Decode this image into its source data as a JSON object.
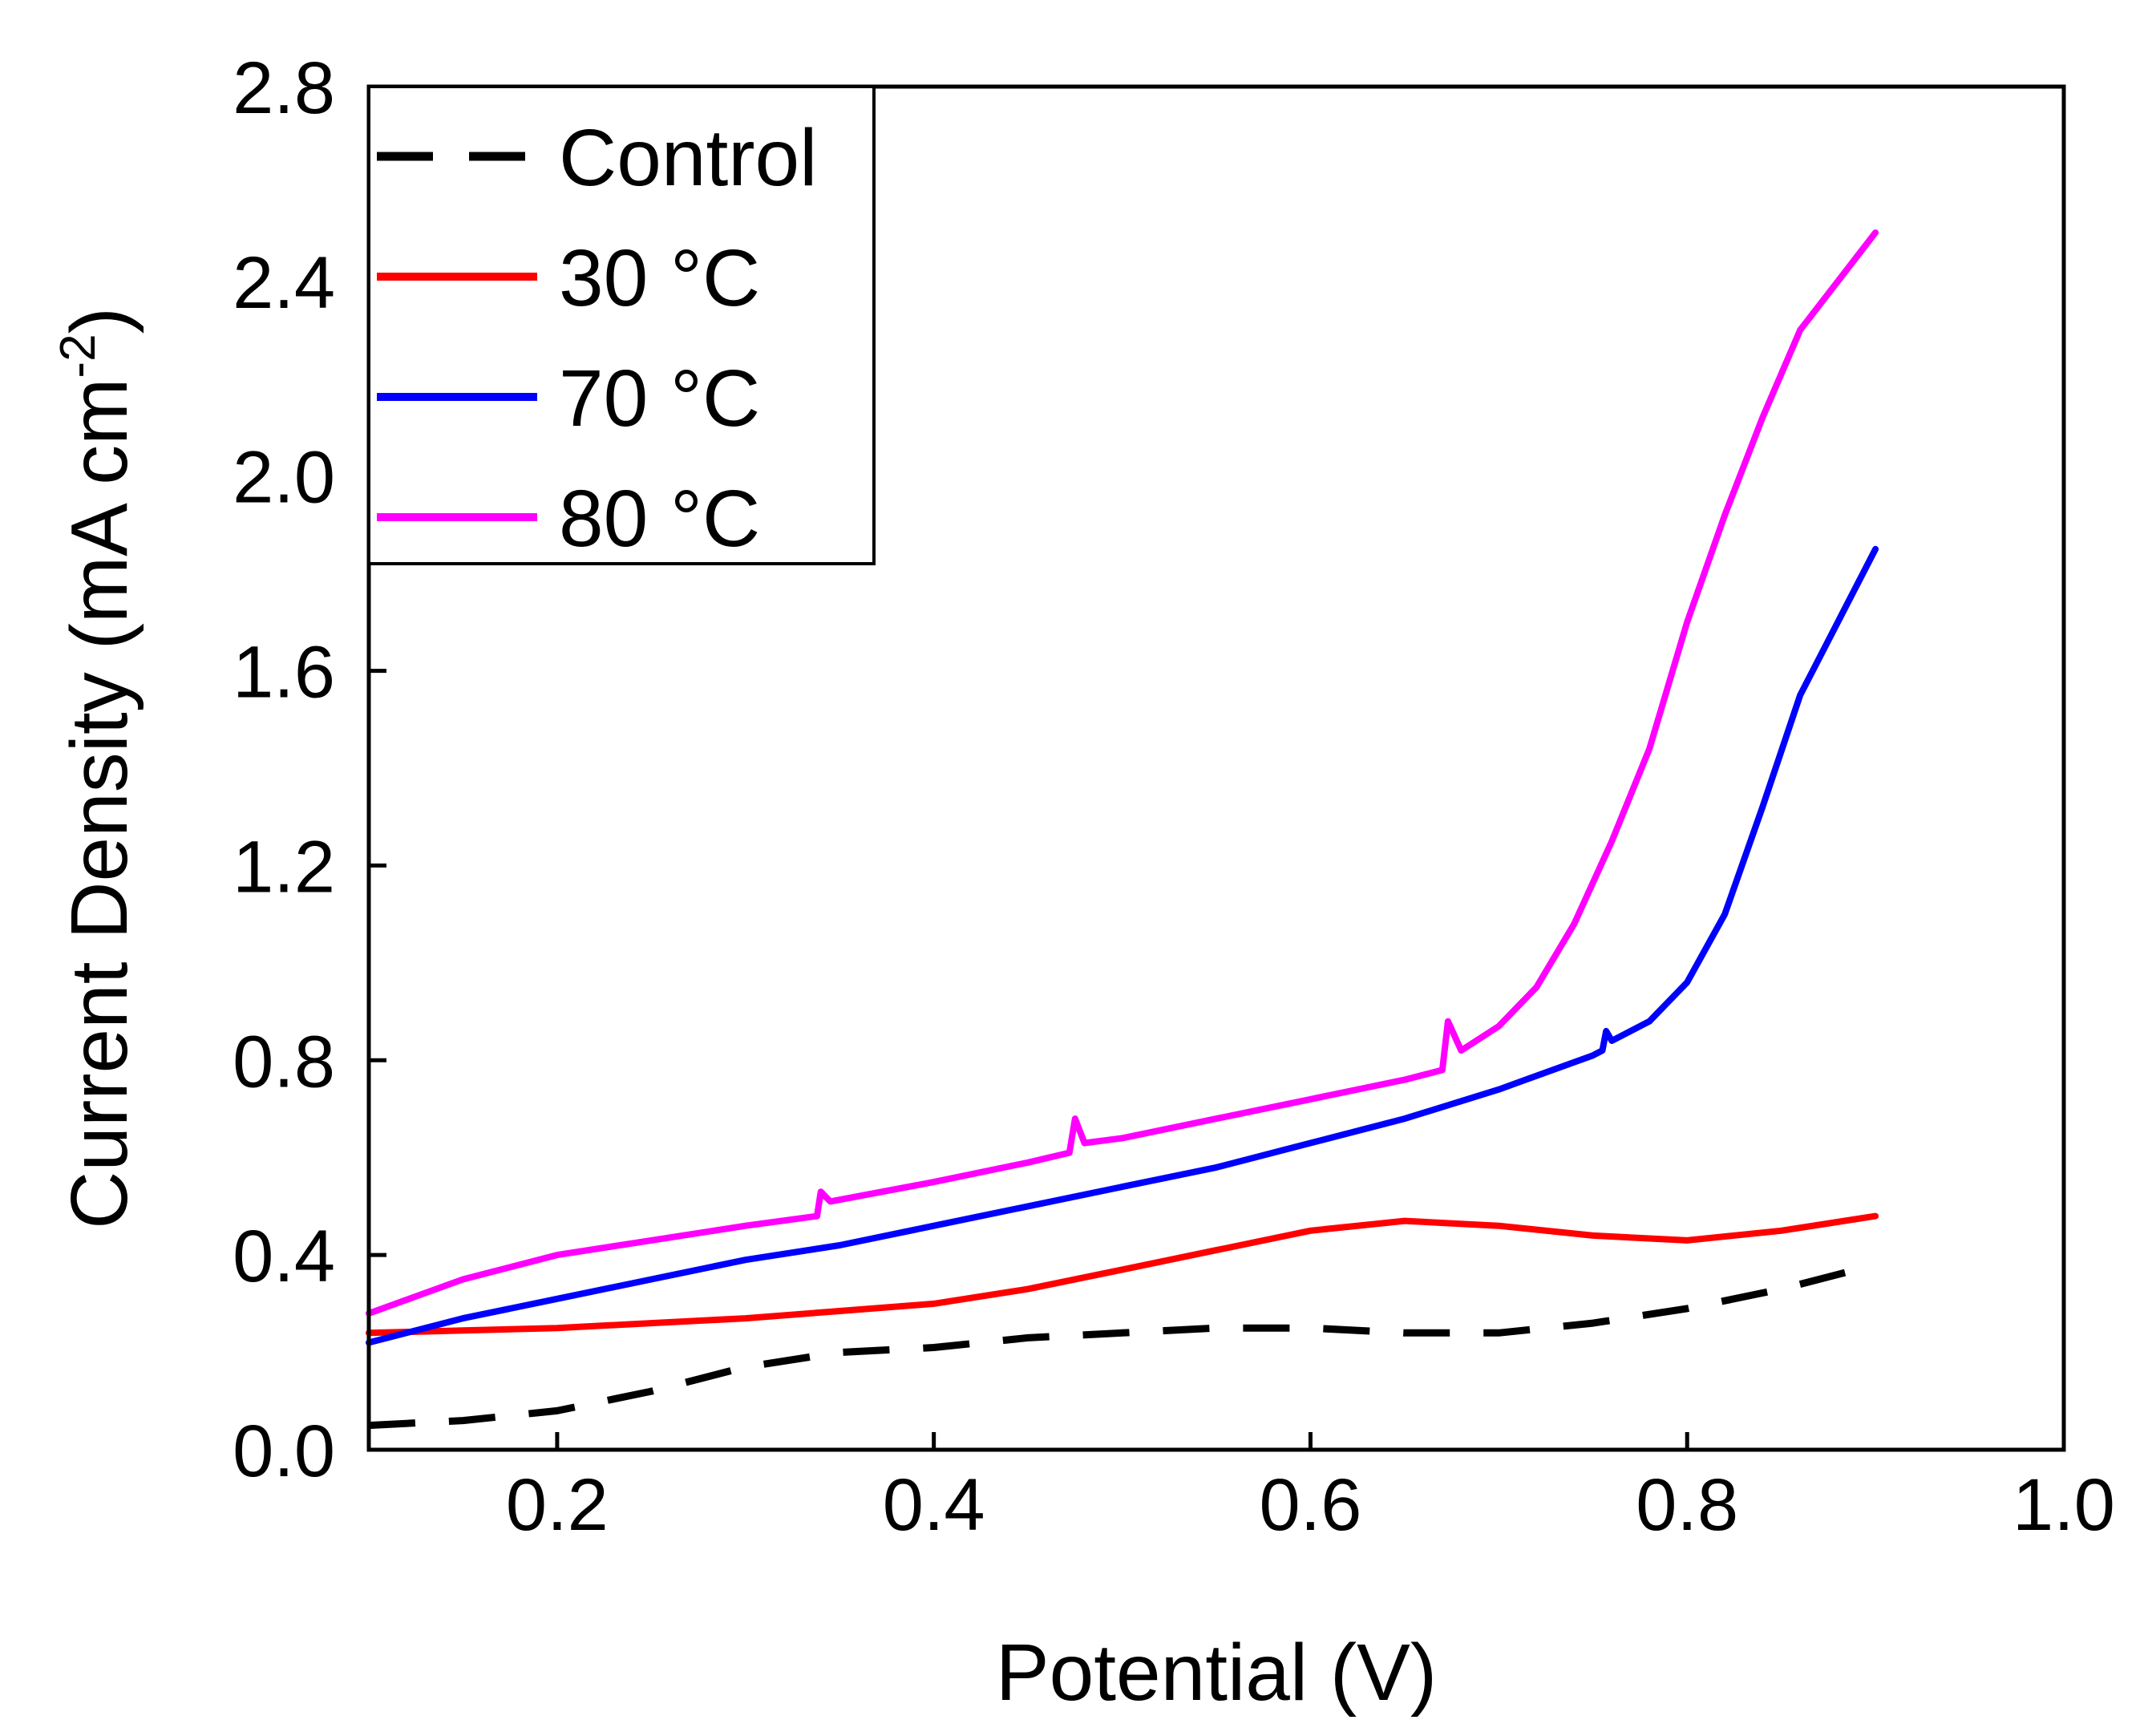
{
  "chart_data": {
    "type": "line",
    "title": "",
    "xlabel": "Potential (V)",
    "ylabel_main": "Current Density (mA cm",
    "ylabel_sup": "-2",
    "ylabel_close": ")",
    "xlim": [
      0.1,
      1.0
    ],
    "ylim": [
      0.0,
      2.8
    ],
    "xticks": [
      0.2,
      0.4,
      0.6,
      0.8,
      1.0
    ],
    "xtick_labels": [
      "0.2",
      "0.4",
      "0.6",
      "0.8",
      "1.0"
    ],
    "yticks": [
      0.0,
      0.4,
      0.8,
      1.2,
      1.6,
      2.0,
      2.4,
      2.8
    ],
    "ytick_labels": [
      "0.0",
      "0.4",
      "0.8",
      "1.2",
      "1.6",
      "2.0",
      "2.4",
      "2.8"
    ],
    "grid": false,
    "legend_position": "top-left",
    "series": [
      {
        "name": "Control",
        "color": "#000000",
        "style": "dashed",
        "x": [
          0.1,
          0.15,
          0.2,
          0.25,
          0.3,
          0.35,
          0.4,
          0.45,
          0.5,
          0.55,
          0.6,
          0.65,
          0.7,
          0.75,
          0.8,
          0.85,
          0.9
        ],
        "y": [
          0.05,
          0.06,
          0.08,
          0.12,
          0.17,
          0.2,
          0.21,
          0.23,
          0.24,
          0.25,
          0.25,
          0.24,
          0.24,
          0.26,
          0.29,
          0.33,
          0.38
        ]
      },
      {
        "name": "30 °C",
        "color": "#ff0000",
        "style": "solid",
        "x": [
          0.1,
          0.15,
          0.2,
          0.25,
          0.3,
          0.35,
          0.4,
          0.45,
          0.5,
          0.55,
          0.6,
          0.65,
          0.7,
          0.75,
          0.8,
          0.85,
          0.9
        ],
        "y": [
          0.24,
          0.245,
          0.25,
          0.26,
          0.27,
          0.285,
          0.3,
          0.33,
          0.37,
          0.41,
          0.45,
          0.47,
          0.46,
          0.44,
          0.43,
          0.45,
          0.48
        ]
      },
      {
        "name": "70 °C",
        "color": "#0000ff",
        "style": "solid",
        "x": [
          0.1,
          0.15,
          0.2,
          0.25,
          0.3,
          0.35,
          0.4,
          0.45,
          0.5,
          0.55,
          0.6,
          0.65,
          0.7,
          0.75,
          0.755,
          0.757,
          0.76,
          0.78,
          0.8,
          0.82,
          0.84,
          0.86,
          0.88,
          0.9
        ],
        "y": [
          0.22,
          0.27,
          0.31,
          0.35,
          0.39,
          0.42,
          0.46,
          0.5,
          0.54,
          0.58,
          0.63,
          0.68,
          0.74,
          0.81,
          0.82,
          0.86,
          0.84,
          0.88,
          0.96,
          1.1,
          1.32,
          1.55,
          1.7,
          1.85
        ]
      },
      {
        "name": "80 °C",
        "color": "#ff00ff",
        "style": "solid",
        "x": [
          0.1,
          0.15,
          0.2,
          0.25,
          0.3,
          0.338,
          0.34,
          0.345,
          0.4,
          0.45,
          0.472,
          0.475,
          0.48,
          0.5,
          0.55,
          0.6,
          0.65,
          0.67,
          0.673,
          0.68,
          0.7,
          0.72,
          0.74,
          0.76,
          0.78,
          0.8,
          0.82,
          0.84,
          0.86,
          0.88,
          0.89,
          0.9
        ],
        "y": [
          0.28,
          0.35,
          0.4,
          0.43,
          0.46,
          0.48,
          0.53,
          0.51,
          0.55,
          0.59,
          0.61,
          0.68,
          0.63,
          0.64,
          0.68,
          0.72,
          0.76,
          0.78,
          0.88,
          0.82,
          0.87,
          0.95,
          1.08,
          1.25,
          1.44,
          1.7,
          1.92,
          2.12,
          2.3,
          2.4,
          2.45,
          2.5
        ]
      }
    ]
  }
}
